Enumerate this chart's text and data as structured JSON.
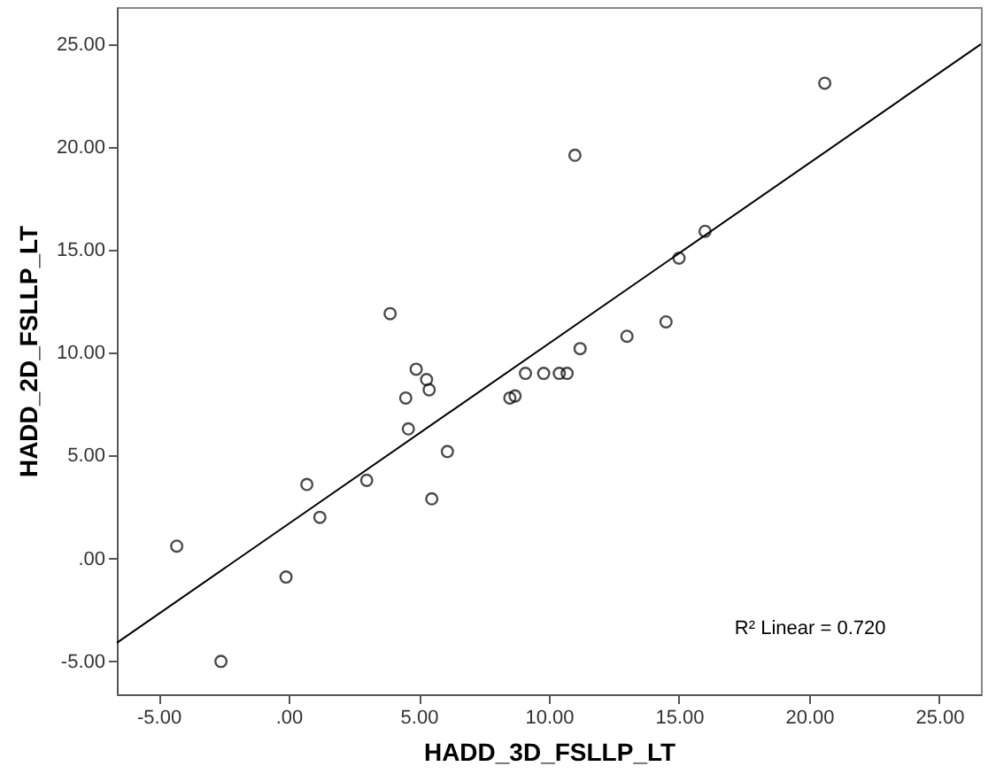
{
  "chart_data": {
    "type": "scatter",
    "xlabel": "HADD_3D_FSLLP_LT",
    "ylabel": "HADD_2D_FSLLP_LT",
    "xlim": [
      -6.6,
      26.6
    ],
    "ylim": [
      -6.6,
      26.8
    ],
    "xticks": [
      {
        "value": -5,
        "label": "-5.00"
      },
      {
        "value": 0,
        "label": ".00"
      },
      {
        "value": 5,
        "label": "5.00"
      },
      {
        "value": 10,
        "label": "10.00"
      },
      {
        "value": 15,
        "label": "15.00"
      },
      {
        "value": 20,
        "label": "20.00"
      },
      {
        "value": 25,
        "label": "25.00"
      }
    ],
    "yticks": [
      {
        "value": -5,
        "label": "-5.00"
      },
      {
        "value": 0,
        "label": ".00"
      },
      {
        "value": 5,
        "label": "5.00"
      },
      {
        "value": 10,
        "label": "10.00"
      },
      {
        "value": 15,
        "label": "15.00"
      },
      {
        "value": 20,
        "label": "20.00"
      },
      {
        "value": 25,
        "label": "25.00"
      }
    ],
    "grid": false,
    "series": [
      {
        "type": "scatter",
        "marker": "circle",
        "color": "#000000",
        "x": [
          -4.3,
          -2.6,
          -0.1,
          0.7,
          1.2,
          3.0,
          4.5,
          4.6,
          4.9,
          5.3,
          5.4,
          5.5,
          6.1,
          3.9,
          11.0,
          20.6,
          16.0,
          15.0,
          14.5,
          13.0,
          11.2,
          9.1,
          9.8,
          10.4,
          10.7,
          8.5,
          8.7
        ],
        "values": [
          0.6,
          -5.0,
          -0.9,
          3.6,
          2.0,
          3.8,
          7.8,
          6.3,
          9.2,
          8.7,
          8.2,
          2.9,
          5.2,
          11.9,
          19.6,
          23.1,
          15.9,
          14.6,
          11.5,
          10.8,
          10.2,
          9.0,
          9.0,
          9.0,
          9.0,
          7.8,
          7.9
        ]
      },
      {
        "type": "line",
        "line_style": "solid",
        "color": "#000000",
        "x": [
          -6.6,
          26.6
        ],
        "values": [
          -4.1,
          25.0
        ]
      }
    ],
    "annotations": [
      "R² Linear = 0.720"
    ]
  }
}
